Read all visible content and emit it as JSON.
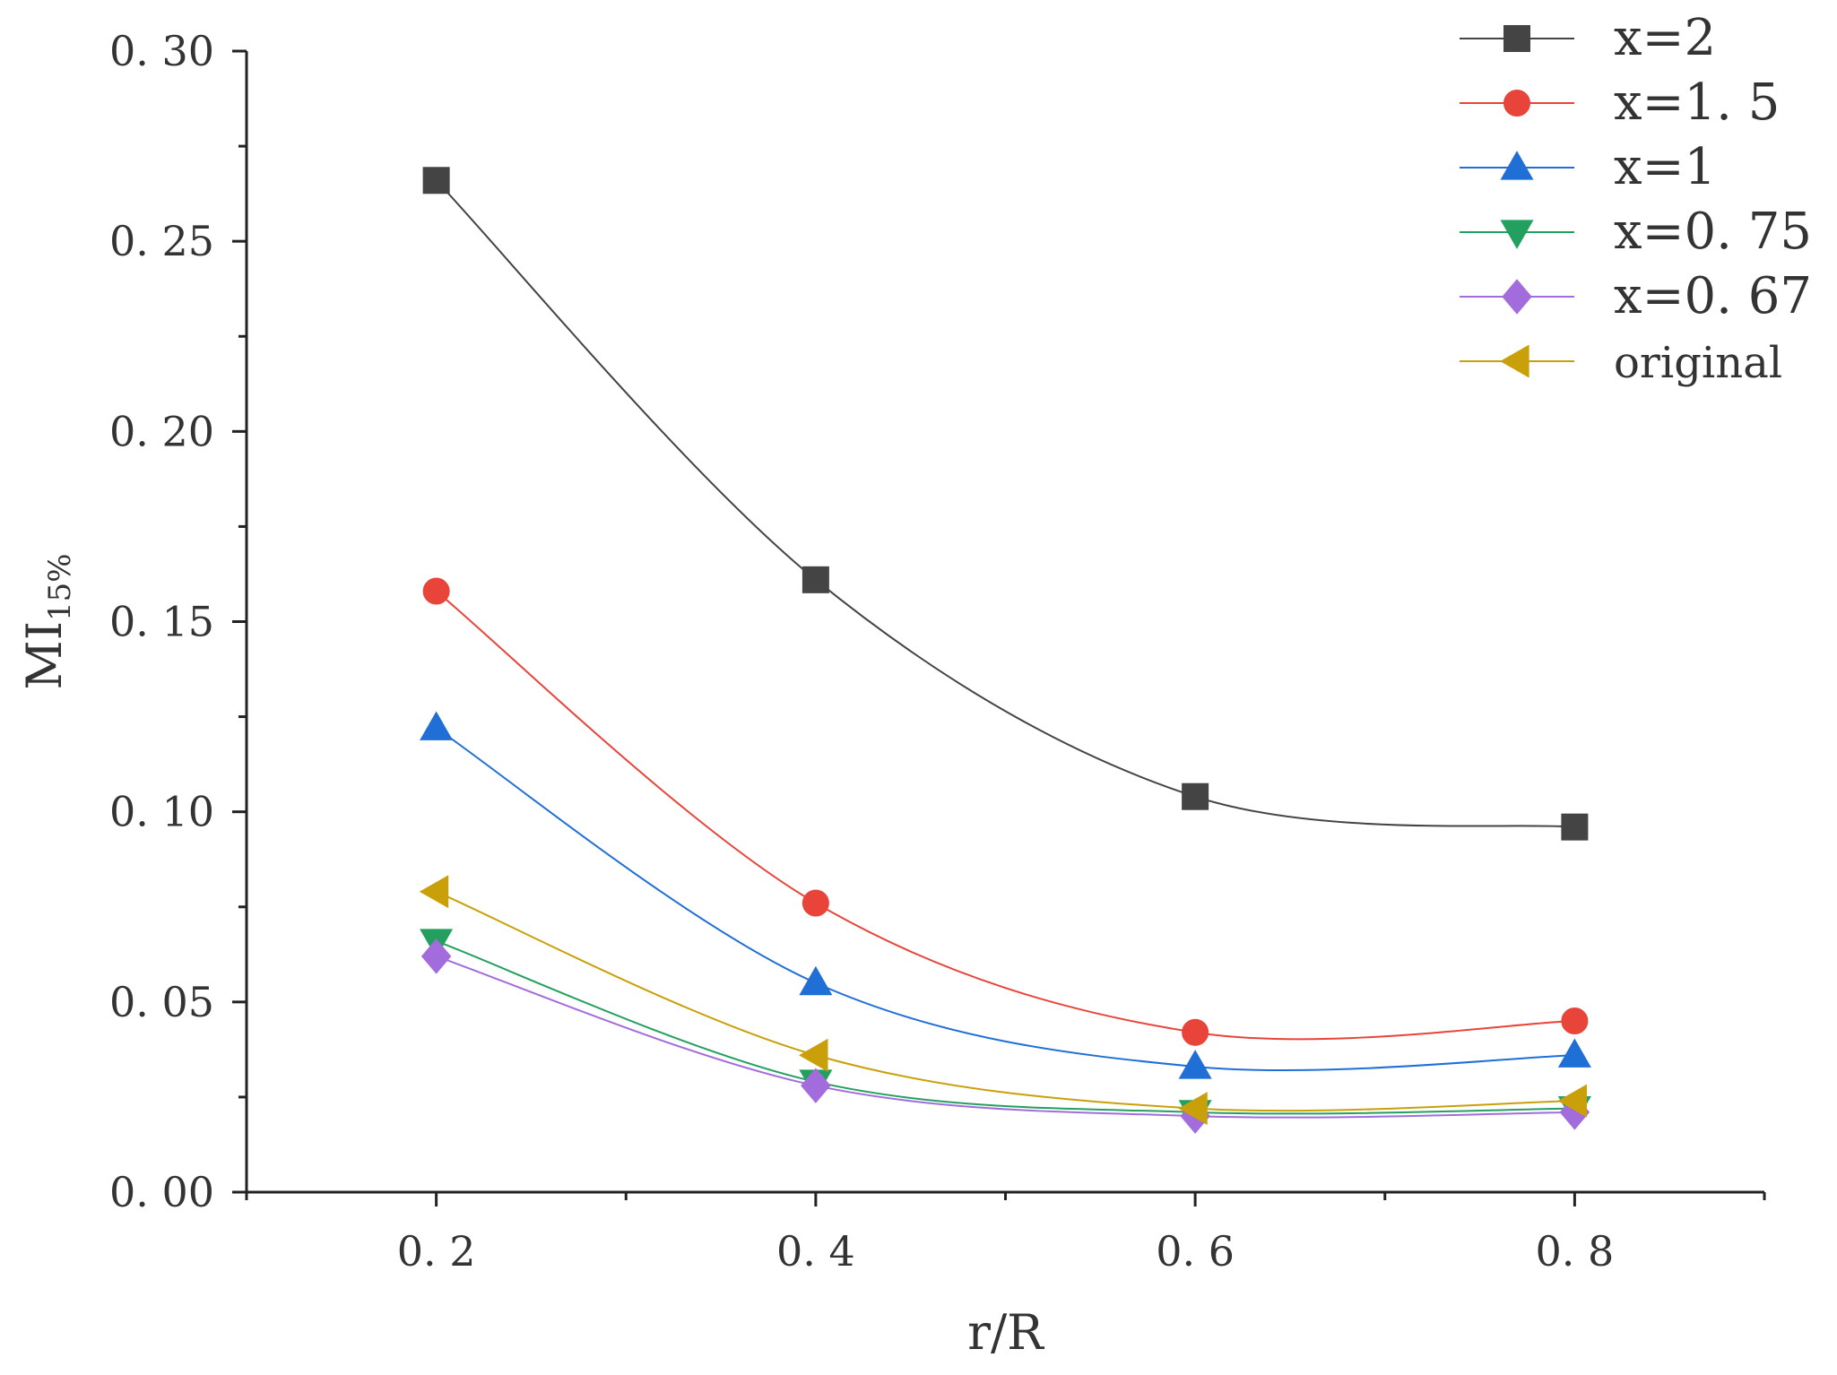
{
  "chart_data": {
    "type": "line",
    "title": "",
    "xlabel": "r/R",
    "ylabel": "MI",
    "ylabel_subscript": "15%",
    "xlim": [
      0.1,
      0.9
    ],
    "ylim": [
      0.0,
      0.3
    ],
    "x": [
      0.2,
      0.4,
      0.6,
      0.8
    ],
    "x_tick_labels": [
      "0. 2",
      "0. 4",
      "0. 6",
      "0. 8"
    ],
    "y_ticks": [
      0.0,
      0.05,
      0.1,
      0.15,
      0.2,
      0.25,
      0.3
    ],
    "y_tick_labels": [
      "0. 00",
      "0. 05",
      "0. 10",
      "0. 15",
      "0. 20",
      "0. 25",
      "0. 30"
    ],
    "legend_position": "top-right",
    "series": [
      {
        "name": "x=2",
        "values": [
          0.266,
          0.161,
          0.104,
          0.096
        ],
        "color": "#444444",
        "marker": "square"
      },
      {
        "name": "x=1. 5",
        "values": [
          0.158,
          0.076,
          0.042,
          0.045
        ],
        "color": "#e8443a",
        "marker": "circle"
      },
      {
        "name": "x=1",
        "values": [
          0.122,
          0.055,
          0.033,
          0.036
        ],
        "color": "#1f6fd6",
        "marker": "triangle-up"
      },
      {
        "name": "x=0. 75",
        "values": [
          0.066,
          0.029,
          0.021,
          0.022
        ],
        "color": "#23a060",
        "marker": "triangle-down"
      },
      {
        "name": "x=0. 67",
        "values": [
          0.062,
          0.028,
          0.02,
          0.021
        ],
        "color": "#a36cdd",
        "marker": "diamond"
      },
      {
        "name": "original",
        "values": [
          0.079,
          0.036,
          0.022,
          0.024
        ],
        "color": "#c9a00a",
        "marker": "triangle-left"
      }
    ]
  }
}
